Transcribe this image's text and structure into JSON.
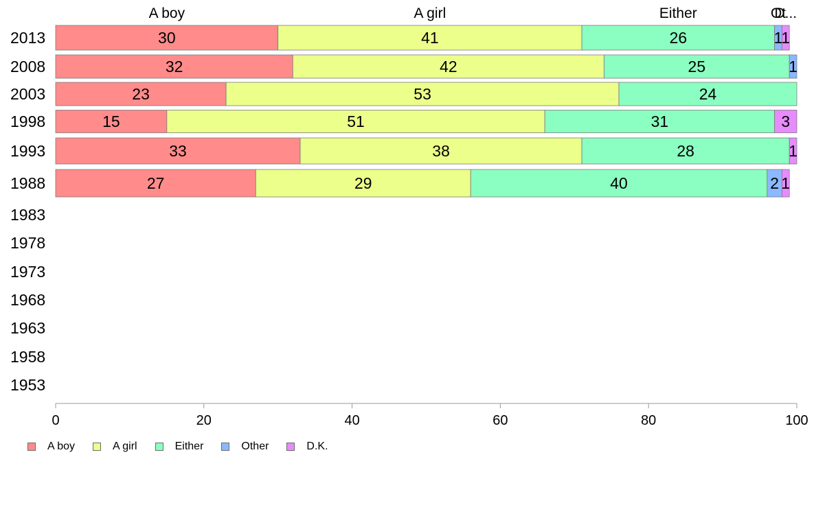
{
  "chart_data": {
    "type": "bar",
    "orientation": "horizontal",
    "stacked": true,
    "title": "",
    "xlabel": "",
    "ylabel": "",
    "xlim": [
      0,
      100
    ],
    "xticks": [
      0,
      20,
      40,
      60,
      80,
      100
    ],
    "categories": [
      "2013",
      "2008",
      "2003",
      "1998",
      "1993",
      "1988",
      "1983",
      "1978",
      "1973",
      "1968",
      "1963",
      "1958",
      "1953"
    ],
    "top_labels": [
      {
        "text": "A boy",
        "series": 0
      },
      {
        "text": "A girl",
        "series": 1
      },
      {
        "text": "Either",
        "series": 2
      },
      {
        "text": "Ot",
        "series": 3
      },
      {
        "text": "D...",
        "series": 4
      }
    ],
    "series": [
      {
        "name": "A boy",
        "color": "#ff8b8b",
        "values": [
          30,
          32,
          23,
          15,
          33,
          27,
          null,
          null,
          null,
          null,
          null,
          null,
          null
        ]
      },
      {
        "name": "A girl",
        "color": "#ecff8b",
        "values": [
          41,
          42,
          53,
          51,
          38,
          29,
          null,
          null,
          null,
          null,
          null,
          null,
          null
        ]
      },
      {
        "name": "Either",
        "color": "#8bffc1",
        "values": [
          26,
          25,
          24,
          31,
          28,
          40,
          null,
          null,
          null,
          null,
          null,
          null,
          null
        ]
      },
      {
        "name": "Other",
        "color": "#8bb8ff",
        "values": [
          1,
          1,
          0,
          0,
          0,
          2,
          null,
          null,
          null,
          null,
          null,
          null,
          null
        ]
      },
      {
        "name": "D.K.",
        "color": "#e78bff",
        "values": [
          1,
          0,
          0,
          3,
          1,
          1,
          null,
          null,
          null,
          null,
          null,
          null,
          null
        ]
      }
    ],
    "legend": {
      "position": "bottom-left"
    },
    "grid": false
  }
}
